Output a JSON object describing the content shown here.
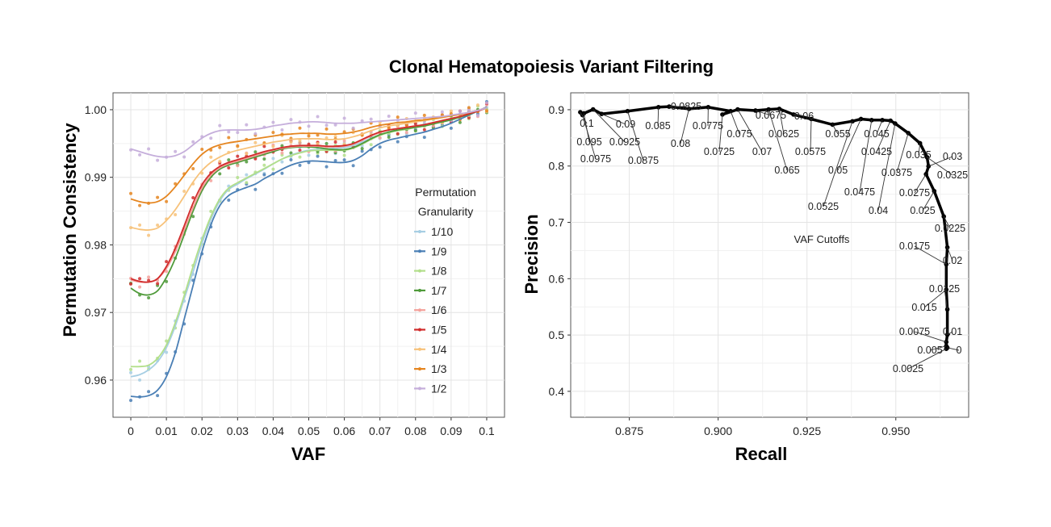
{
  "title": "Clonal Hematopoiesis Variant Filtering",
  "chart_data": [
    {
      "type": "line",
      "xlabel": "VAF",
      "ylabel": "Permutation Consistency",
      "xlim": [
        -0.005,
        0.105
      ],
      "ylim": [
        0.9545,
        1.0025
      ],
      "x_ticks": [
        0,
        0.01,
        0.02,
        0.03,
        0.04,
        0.05,
        0.06,
        0.07,
        0.08,
        0.09,
        0.1
      ],
      "x_tick_labels": [
        "0",
        "0.01",
        "0.02",
        "0.03",
        "0.04",
        "0.05",
        "0.06",
        "0.07",
        "0.08",
        "0.09",
        "0.1"
      ],
      "y_ticks": [
        0.96,
        0.97,
        0.98,
        0.99,
        1.0
      ],
      "y_tick_labels": [
        "0.96",
        "0.97",
        "0.98",
        "0.99",
        "1.00"
      ],
      "grid": true,
      "legend": {
        "title_lines": [
          "Permutation",
          "Granularity"
        ],
        "placement": "right-inside"
      },
      "x": [
        0,
        0.0025,
        0.005,
        0.0075,
        0.01,
        0.0125,
        0.015,
        0.0175,
        0.02,
        0.0225,
        0.025,
        0.0275,
        0.03,
        0.0325,
        0.035,
        0.0375,
        0.04,
        0.0425,
        0.045,
        0.0475,
        0.05,
        0.0525,
        0.055,
        0.0575,
        0.06,
        0.0625,
        0.065,
        0.0675,
        0.07,
        0.0725,
        0.075,
        0.0775,
        0.08,
        0.0825,
        0.085,
        0.0875,
        0.09,
        0.0925,
        0.095,
        0.0975,
        0.1
      ],
      "series": [
        {
          "name": "1/10",
          "color": "#a6cee3",
          "values": [
            0.9605,
            0.9608,
            0.9615,
            0.9627,
            0.9648,
            0.968,
            0.972,
            0.976,
            0.9802,
            0.9838,
            0.9865,
            0.9882,
            0.989,
            0.9898,
            0.9905,
            0.9912,
            0.992,
            0.9927,
            0.9933,
            0.9937,
            0.994,
            0.9941,
            0.9942,
            0.9943,
            0.9944,
            0.9947,
            0.9952,
            0.9958,
            0.9963,
            0.9967,
            0.997,
            0.9972,
            0.9975,
            0.9977,
            0.998,
            0.9983,
            0.9986,
            0.999,
            0.9994,
            0.9998,
            1.0003
          ]
        },
        {
          "name": "1/9",
          "color": "#4a7fb5",
          "values": [
            0.9576,
            0.9575,
            0.9577,
            0.9585,
            0.9605,
            0.964,
            0.969,
            0.974,
            0.979,
            0.983,
            0.9858,
            0.9873,
            0.988,
            0.9885,
            0.989,
            0.9898,
            0.9905,
            0.9912,
            0.9918,
            0.9922,
            0.9924,
            0.9924,
            0.9923,
            0.9922,
            0.9922,
            0.9925,
            0.9932,
            0.9942,
            0.995,
            0.9955,
            0.9958,
            0.9961,
            0.9964,
            0.9967,
            0.9971,
            0.9975,
            0.998,
            0.9986,
            0.9992,
            0.9998,
            1.0004
          ]
        },
        {
          "name": "1/8",
          "color": "#b2df8a",
          "values": [
            0.962,
            0.962,
            0.9622,
            0.9632,
            0.9652,
            0.9685,
            0.9725,
            0.9768,
            0.9808,
            0.9842,
            0.9868,
            0.9884,
            0.9892,
            0.9899,
            0.9906,
            0.9913,
            0.992,
            0.9927,
            0.9932,
            0.9936,
            0.9939,
            0.994,
            0.994,
            0.994,
            0.994,
            0.9943,
            0.9949,
            0.9956,
            0.9962,
            0.9966,
            0.9969,
            0.9971,
            0.9974,
            0.9976,
            0.9979,
            0.9983,
            0.9986,
            0.999,
            0.9994,
            0.9998,
            1.0003
          ]
        },
        {
          "name": "1/7",
          "color": "#4f9a3a",
          "values": [
            0.9736,
            0.9728,
            0.9726,
            0.9732,
            0.9752,
            0.978,
            0.9815,
            0.985,
            0.988,
            0.99,
            0.9912,
            0.9918,
            0.9922,
            0.9926,
            0.993,
            0.9934,
            0.9938,
            0.9942,
            0.9944,
            0.9945,
            0.9945,
            0.9944,
            0.9942,
            0.9941,
            0.9941,
            0.9944,
            0.995,
            0.9957,
            0.9963,
            0.9967,
            0.997,
            0.9972,
            0.9974,
            0.9976,
            0.9979,
            0.9982,
            0.9985,
            0.9989,
            0.9993,
            0.9998,
            1.0003
          ]
        },
        {
          "name": "1/6",
          "color": "#f4a09a",
          "values": [
            0.9748,
            0.9745,
            0.9745,
            0.975,
            0.9765,
            0.979,
            0.9822,
            0.9855,
            0.9884,
            0.9903,
            0.9914,
            0.992,
            0.9924,
            0.9928,
            0.9932,
            0.9936,
            0.994,
            0.9943,
            0.9945,
            0.9946,
            0.9946,
            0.9946,
            0.9945,
            0.9945,
            0.9946,
            0.9949,
            0.9955,
            0.9961,
            0.9966,
            0.997,
            0.9972,
            0.9974,
            0.9976,
            0.9978,
            0.9981,
            0.9984,
            0.9987,
            0.999,
            0.9994,
            0.9998,
            1.0003
          ]
        },
        {
          "name": "1/5",
          "color": "#d12b2b",
          "values": [
            0.975,
            0.9746,
            0.9745,
            0.975,
            0.9768,
            0.9795,
            0.9828,
            0.9862,
            0.9889,
            0.9906,
            0.9916,
            0.9922,
            0.9926,
            0.993,
            0.9934,
            0.9938,
            0.9941,
            0.9944,
            0.9946,
            0.9947,
            0.9947,
            0.9947,
            0.9946,
            0.9946,
            0.9947,
            0.995,
            0.9956,
            0.9962,
            0.9967,
            0.997,
            0.9972,
            0.9974,
            0.9976,
            0.9978,
            0.9981,
            0.9984,
            0.9987,
            0.999,
            0.9994,
            0.9998,
            1.0003
          ]
        },
        {
          "name": "1/4",
          "color": "#f7c27a",
          "values": [
            0.9826,
            0.9823,
            0.9822,
            0.9825,
            0.9836,
            0.9852,
            0.9872,
            0.9893,
            0.991,
            0.9922,
            0.993,
            0.9936,
            0.994,
            0.9943,
            0.9946,
            0.9949,
            0.9952,
            0.9954,
            0.9956,
            0.9957,
            0.9957,
            0.9957,
            0.9956,
            0.9956,
            0.9957,
            0.996,
            0.9964,
            0.9969,
            0.9973,
            0.9976,
            0.9978,
            0.998,
            0.9982,
            0.9984,
            0.9986,
            0.9988,
            0.9991,
            0.9993,
            0.9996,
            0.9999,
            1.0003
          ]
        },
        {
          "name": "1/3",
          "color": "#e5851f",
          "values": [
            0.9868,
            0.9864,
            0.9862,
            0.9864,
            0.9872,
            0.9886,
            0.9903,
            0.992,
            0.9934,
            0.9943,
            0.9948,
            0.9951,
            0.9953,
            0.9955,
            0.9957,
            0.9959,
            0.9961,
            0.9963,
            0.9964,
            0.9965,
            0.9965,
            0.9965,
            0.9964,
            0.9964,
            0.9965,
            0.9967,
            0.997,
            0.9974,
            0.9977,
            0.9979,
            0.9981,
            0.9982,
            0.9984,
            0.9985,
            0.9987,
            0.9989,
            0.9991,
            0.9993,
            0.9996,
            0.9999,
            1.0003
          ]
        },
        {
          "name": "1/2",
          "color": "#c5aedb",
          "values": [
            0.9942,
            0.9938,
            0.9934,
            0.9931,
            0.993,
            0.9932,
            0.9938,
            0.9948,
            0.9958,
            0.9965,
            0.9969,
            0.997,
            0.997,
            0.997,
            0.9971,
            0.9973,
            0.9976,
            0.9978,
            0.998,
            0.9981,
            0.9982,
            0.9982,
            0.9981,
            0.998,
            0.998,
            0.998,
            0.9981,
            0.9982,
            0.9983,
            0.9984,
            0.9985,
            0.9986,
            0.9987,
            0.9988,
            0.9989,
            0.999,
            0.9992,
            0.9994,
            0.9996,
            0.9999,
            1.0003
          ]
        }
      ]
    },
    {
      "type": "line",
      "xlabel": "Recall",
      "ylabel": "Precision",
      "xlim": [
        0.8585,
        0.9705
      ],
      "ylim": [
        0.354,
        0.93
      ],
      "x_ticks": [
        0.875,
        0.9,
        0.925,
        0.95
      ],
      "x_tick_labels": [
        "0.875",
        "0.900",
        "0.925",
        "0.950"
      ],
      "y_ticks": [
        0.4,
        0.5,
        0.6,
        0.7,
        0.8,
        0.9
      ],
      "y_tick_labels": [
        "0.4",
        "0.5",
        "0.6",
        "0.7",
        "0.8",
        "0.9"
      ],
      "grid": true,
      "annotation": "VAF Cutoffs",
      "points": [
        {
          "label": "0.1",
          "x": 0.8612,
          "y": 0.8955
        },
        {
          "label": "0.0975",
          "x": 0.8618,
          "y": 0.8905
        },
        {
          "label": "0.095",
          "x": 0.8622,
          "y": 0.8935
        },
        {
          "label": "0.0925",
          "x": 0.8648,
          "y": 0.9005
        },
        {
          "label": "0.09",
          "x": 0.8672,
          "y": 0.8925
        },
        {
          "label": "0.0875",
          "x": 0.8745,
          "y": 0.8975
        },
        {
          "label": "0.085",
          "x": 0.8832,
          "y": 0.9045
        },
        {
          "label": "0.0825",
          "x": 0.8862,
          "y": 0.9055
        },
        {
          "label": "0.08",
          "x": 0.8918,
          "y": 0.9015
        },
        {
          "label": "0.0775",
          "x": 0.8972,
          "y": 0.9045
        },
        {
          "label": "0.075",
          "x": 0.9035,
          "y": 0.8975
        },
        {
          "label": "0.0725",
          "x": 0.9012,
          "y": 0.8915
        },
        {
          "label": "0.07",
          "x": 0.9055,
          "y": 0.9005
        },
        {
          "label": "0.0675",
          "x": 0.9105,
          "y": 0.8985
        },
        {
          "label": "0.065",
          "x": 0.9142,
          "y": 0.9005
        },
        {
          "label": "0.0625",
          "x": 0.9172,
          "y": 0.9015
        },
        {
          "label": "0.06",
          "x": 0.9212,
          "y": 0.8915
        },
        {
          "label": "0.0575",
          "x": 0.9262,
          "y": 0.8835
        },
        {
          "label": "0.055",
          "x": 0.9322,
          "y": 0.8735
        },
        {
          "label": "0.0525",
          "x": 0.9378,
          "y": 0.8795
        },
        {
          "label": "0.05",
          "x": 0.9402,
          "y": 0.8835
        },
        {
          "label": "0.0475",
          "x": 0.9432,
          "y": 0.8815
        },
        {
          "label": "0.045",
          "x": 0.9462,
          "y": 0.8815
        },
        {
          "label": "0.0425",
          "x": 0.9485,
          "y": 0.8805
        },
        {
          "label": "0.04",
          "x": 0.9498,
          "y": 0.8755
        },
        {
          "label": "0.0375",
          "x": 0.9535,
          "y": 0.8585
        },
        {
          "label": "0.035",
          "x": 0.9568,
          "y": 0.8405
        },
        {
          "label": "0.0325",
          "x": 0.9588,
          "y": 0.8155
        },
        {
          "label": "0.03",
          "x": 0.9592,
          "y": 0.7995
        },
        {
          "label": "0.0275",
          "x": 0.9585,
          "y": 0.7855
        },
        {
          "label": "0.025",
          "x": 0.9608,
          "y": 0.7555
        },
        {
          "label": "0.0225",
          "x": 0.9635,
          "y": 0.7105
        },
        {
          "label": "0.02",
          "x": 0.9645,
          "y": 0.6555
        },
        {
          "label": "0.0175",
          "x": 0.9642,
          "y": 0.6255
        },
        {
          "label": "0.015",
          "x": 0.9642,
          "y": 0.5805
        },
        {
          "label": "0.0125",
          "x": 0.9645,
          "y": 0.5455
        },
        {
          "label": "0.01",
          "x": 0.9645,
          "y": 0.5005
        },
        {
          "label": "0.0075",
          "x": 0.9642,
          "y": 0.4875
        },
        {
          "label": "0.005",
          "x": 0.9642,
          "y": 0.4805
        },
        {
          "label": "0.0025",
          "x": 0.9642,
          "y": 0.4755
        },
        {
          "label": "0",
          "x": 0.9645,
          "y": 0.4775
        }
      ]
    }
  ]
}
